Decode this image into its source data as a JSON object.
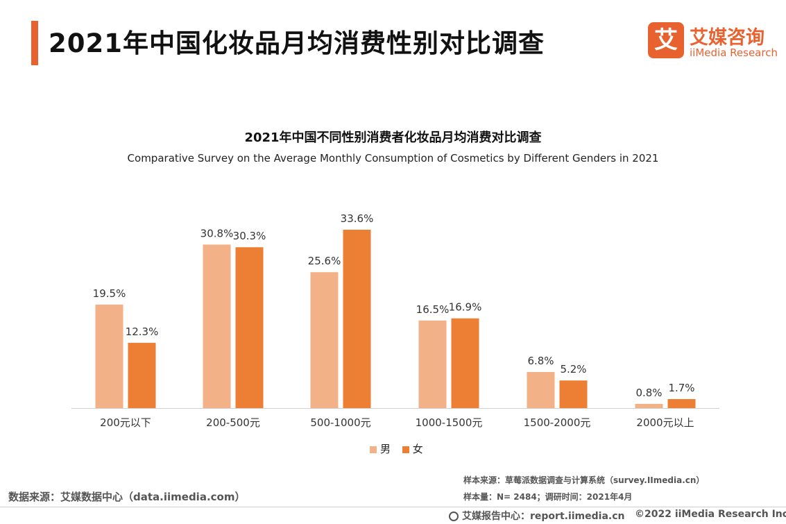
{
  "header": {
    "title": "2021年中国化妆品月均消费性别对比调查"
  },
  "logo": {
    "mark": "艾",
    "name_cn": "艾媒咨询",
    "name_en": "iiMedia Research"
  },
  "colors": {
    "accent": "#e8622f",
    "male": "#f2b186",
    "female": "#ec7f33"
  },
  "chart_data": {
    "type": "bar",
    "title": "2021年中国不同性别消费者化妆品月均消费对比调查",
    "subtitle": "Comparative Survey on the Average Monthly Consumption of Cosmetics by Different Genders in 2021",
    "categories": [
      "200元以下",
      "200-500元",
      "500-1000元",
      "1000-1500元",
      "1500-2000元",
      "2000元以上"
    ],
    "series": [
      {
        "name": "男",
        "values": [
          19.5,
          30.8,
          25.6,
          16.5,
          6.8,
          0.8
        ],
        "labels": [
          "19.5%",
          "30.8%",
          "25.6%",
          "16.5%",
          "6.8%",
          "0.8%"
        ]
      },
      {
        "name": "女",
        "values": [
          12.3,
          30.3,
          33.6,
          16.9,
          5.2,
          1.7
        ],
        "labels": [
          "12.3%",
          "30.3%",
          "33.6%",
          "16.9%",
          "5.2%",
          "1.7%"
        ]
      }
    ],
    "ylim": [
      0,
      33.6
    ],
    "grid": false,
    "legend": "bottom-center"
  },
  "source": {
    "main": "数据来源：艾媒数据中心（data.iimedia.com）",
    "sample_source": "样本来源：草莓派数据调查与计算系统（survey.IImedia.cn）",
    "sample_size": "样本量：N= 2484；调研时间：2021年4月"
  },
  "footer": {
    "report_center": "艾媒报告中心：report.iimedia.cn",
    "copyright": "©2022  iiMedia Research  Inc"
  }
}
